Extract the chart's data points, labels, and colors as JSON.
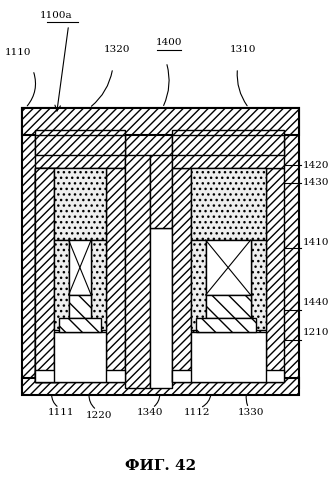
{
  "title": "ФИГ. 42",
  "label_1100": "1100a",
  "label_1110": "1110",
  "label_1310": "1310",
  "label_1320": "1320",
  "label_1400": "1400",
  "label_1420": "1420",
  "label_1430": "1430",
  "label_1410": "1410",
  "label_1440": "1440",
  "label_1210": "1210",
  "label_1111": "1111",
  "label_1220": "1220",
  "label_1340": "1340",
  "label_1112": "1112",
  "label_1330": "1330",
  "bg_color": "white",
  "hatch_color": "black",
  "line_color": "black"
}
